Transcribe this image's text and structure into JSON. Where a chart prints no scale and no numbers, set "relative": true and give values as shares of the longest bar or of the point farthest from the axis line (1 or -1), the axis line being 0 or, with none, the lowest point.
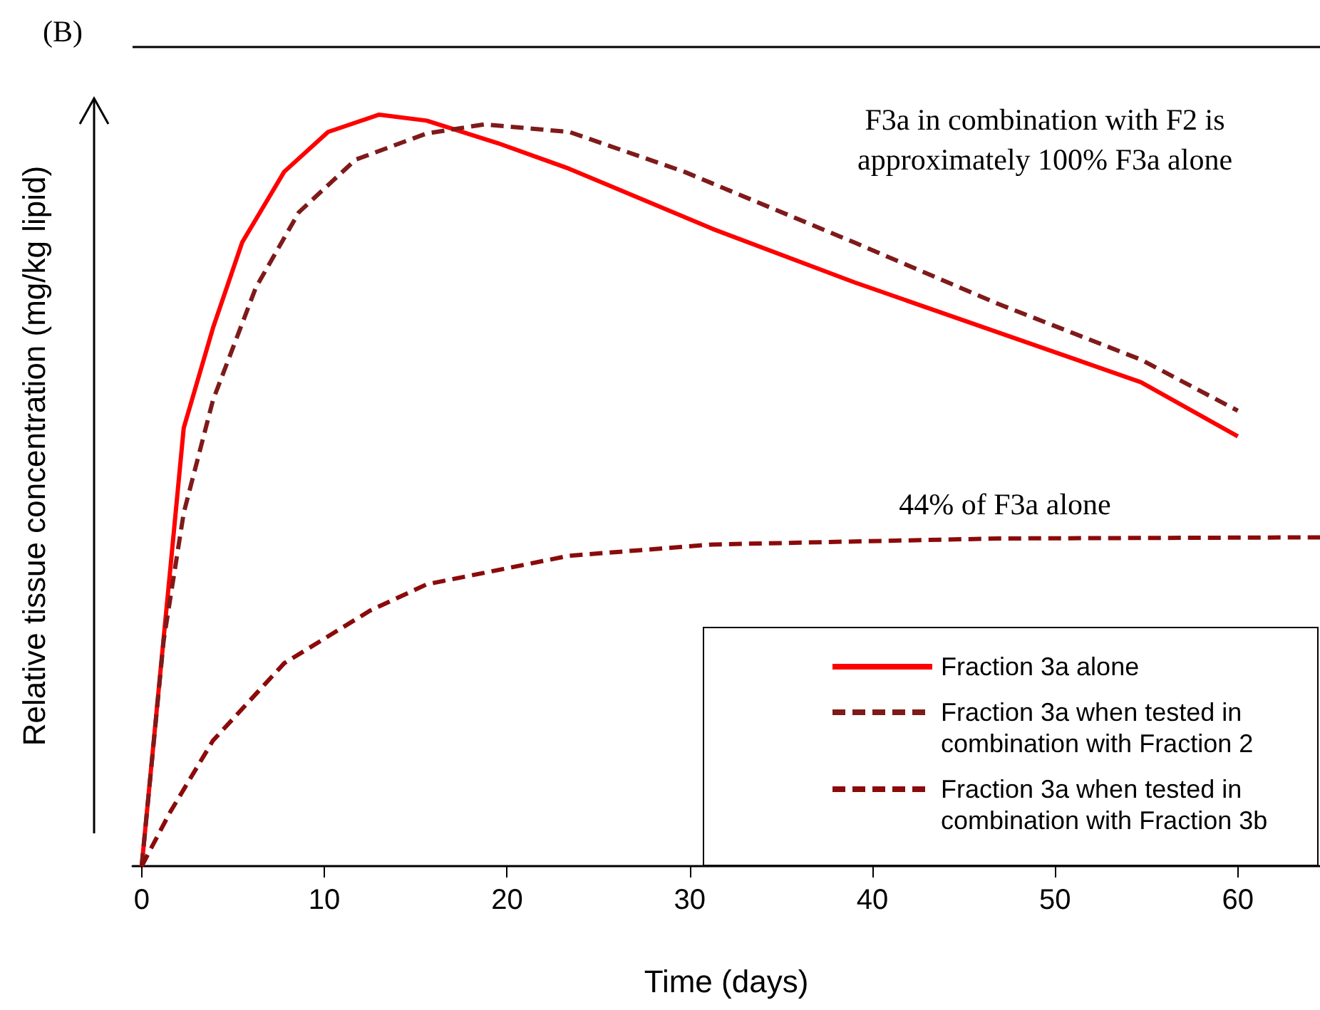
{
  "chart_data": {
    "type": "line",
    "relative": true,
    "xlabel": "Time (days)",
    "ylabel": "Relative tissue concentration (mg/kg lipid)",
    "annotations": [
      "(B)",
      "F3a in combination with F2 is\napproximately 100% F3a alone",
      "44% of F3a alone"
    ],
    "xlim": [
      -0.5,
      64.5
    ],
    "xticks": [
      0,
      10,
      20,
      30,
      40,
      50,
      60
    ],
    "grid": false,
    "legend": "bottom right",
    "marker": "none",
    "series": [
      {
        "name": "Fraction 3a alone",
        "color": "#ff0000",
        "line_style": "solid",
        "x": [
          0,
          1.56,
          2.3,
          3.9,
          5.5,
          7.8,
          10.2,
          13,
          15.6,
          19.5,
          23.4,
          31.25,
          39,
          46.9,
          54.7,
          60
        ],
        "values": [
          0,
          0.394,
          0.583,
          0.716,
          0.83,
          0.924,
          0.977,
          1,
          0.992,
          0.962,
          0.928,
          0.848,
          0.777,
          0.71,
          0.644,
          0.572
        ]
      },
      {
        "name": "Fraction 3a when tested in combination with Fraction 2",
        "color": "#7f1a1a",
        "line_style": "dashed",
        "x": [
          0,
          1.2,
          2.3,
          3.9,
          6.25,
          8.6,
          11.7,
          15.6,
          18.75,
          23.4,
          29.7,
          39,
          46.9,
          54.7,
          60
        ],
        "values": [
          0,
          0.3,
          0.47,
          0.62,
          0.77,
          0.87,
          0.94,
          0.975,
          0.987,
          0.977,
          0.924,
          0.83,
          0.748,
          0.674,
          0.606
        ]
      },
      {
        "name": "Fraction 3a when tested in combination with Fraction 3b",
        "color": "#8b0a0a",
        "line_style": "dashed",
        "x": [
          0,
          1.56,
          3.9,
          7.8,
          12.5,
          15.6,
          23.4,
          31.25,
          39,
          46.9,
          64.5
        ],
        "values": [
          0,
          0.072,
          0.167,
          0.27,
          0.34,
          0.375,
          0.413,
          0.428,
          0.432,
          0.436,
          0.4375
        ]
      }
    ]
  }
}
